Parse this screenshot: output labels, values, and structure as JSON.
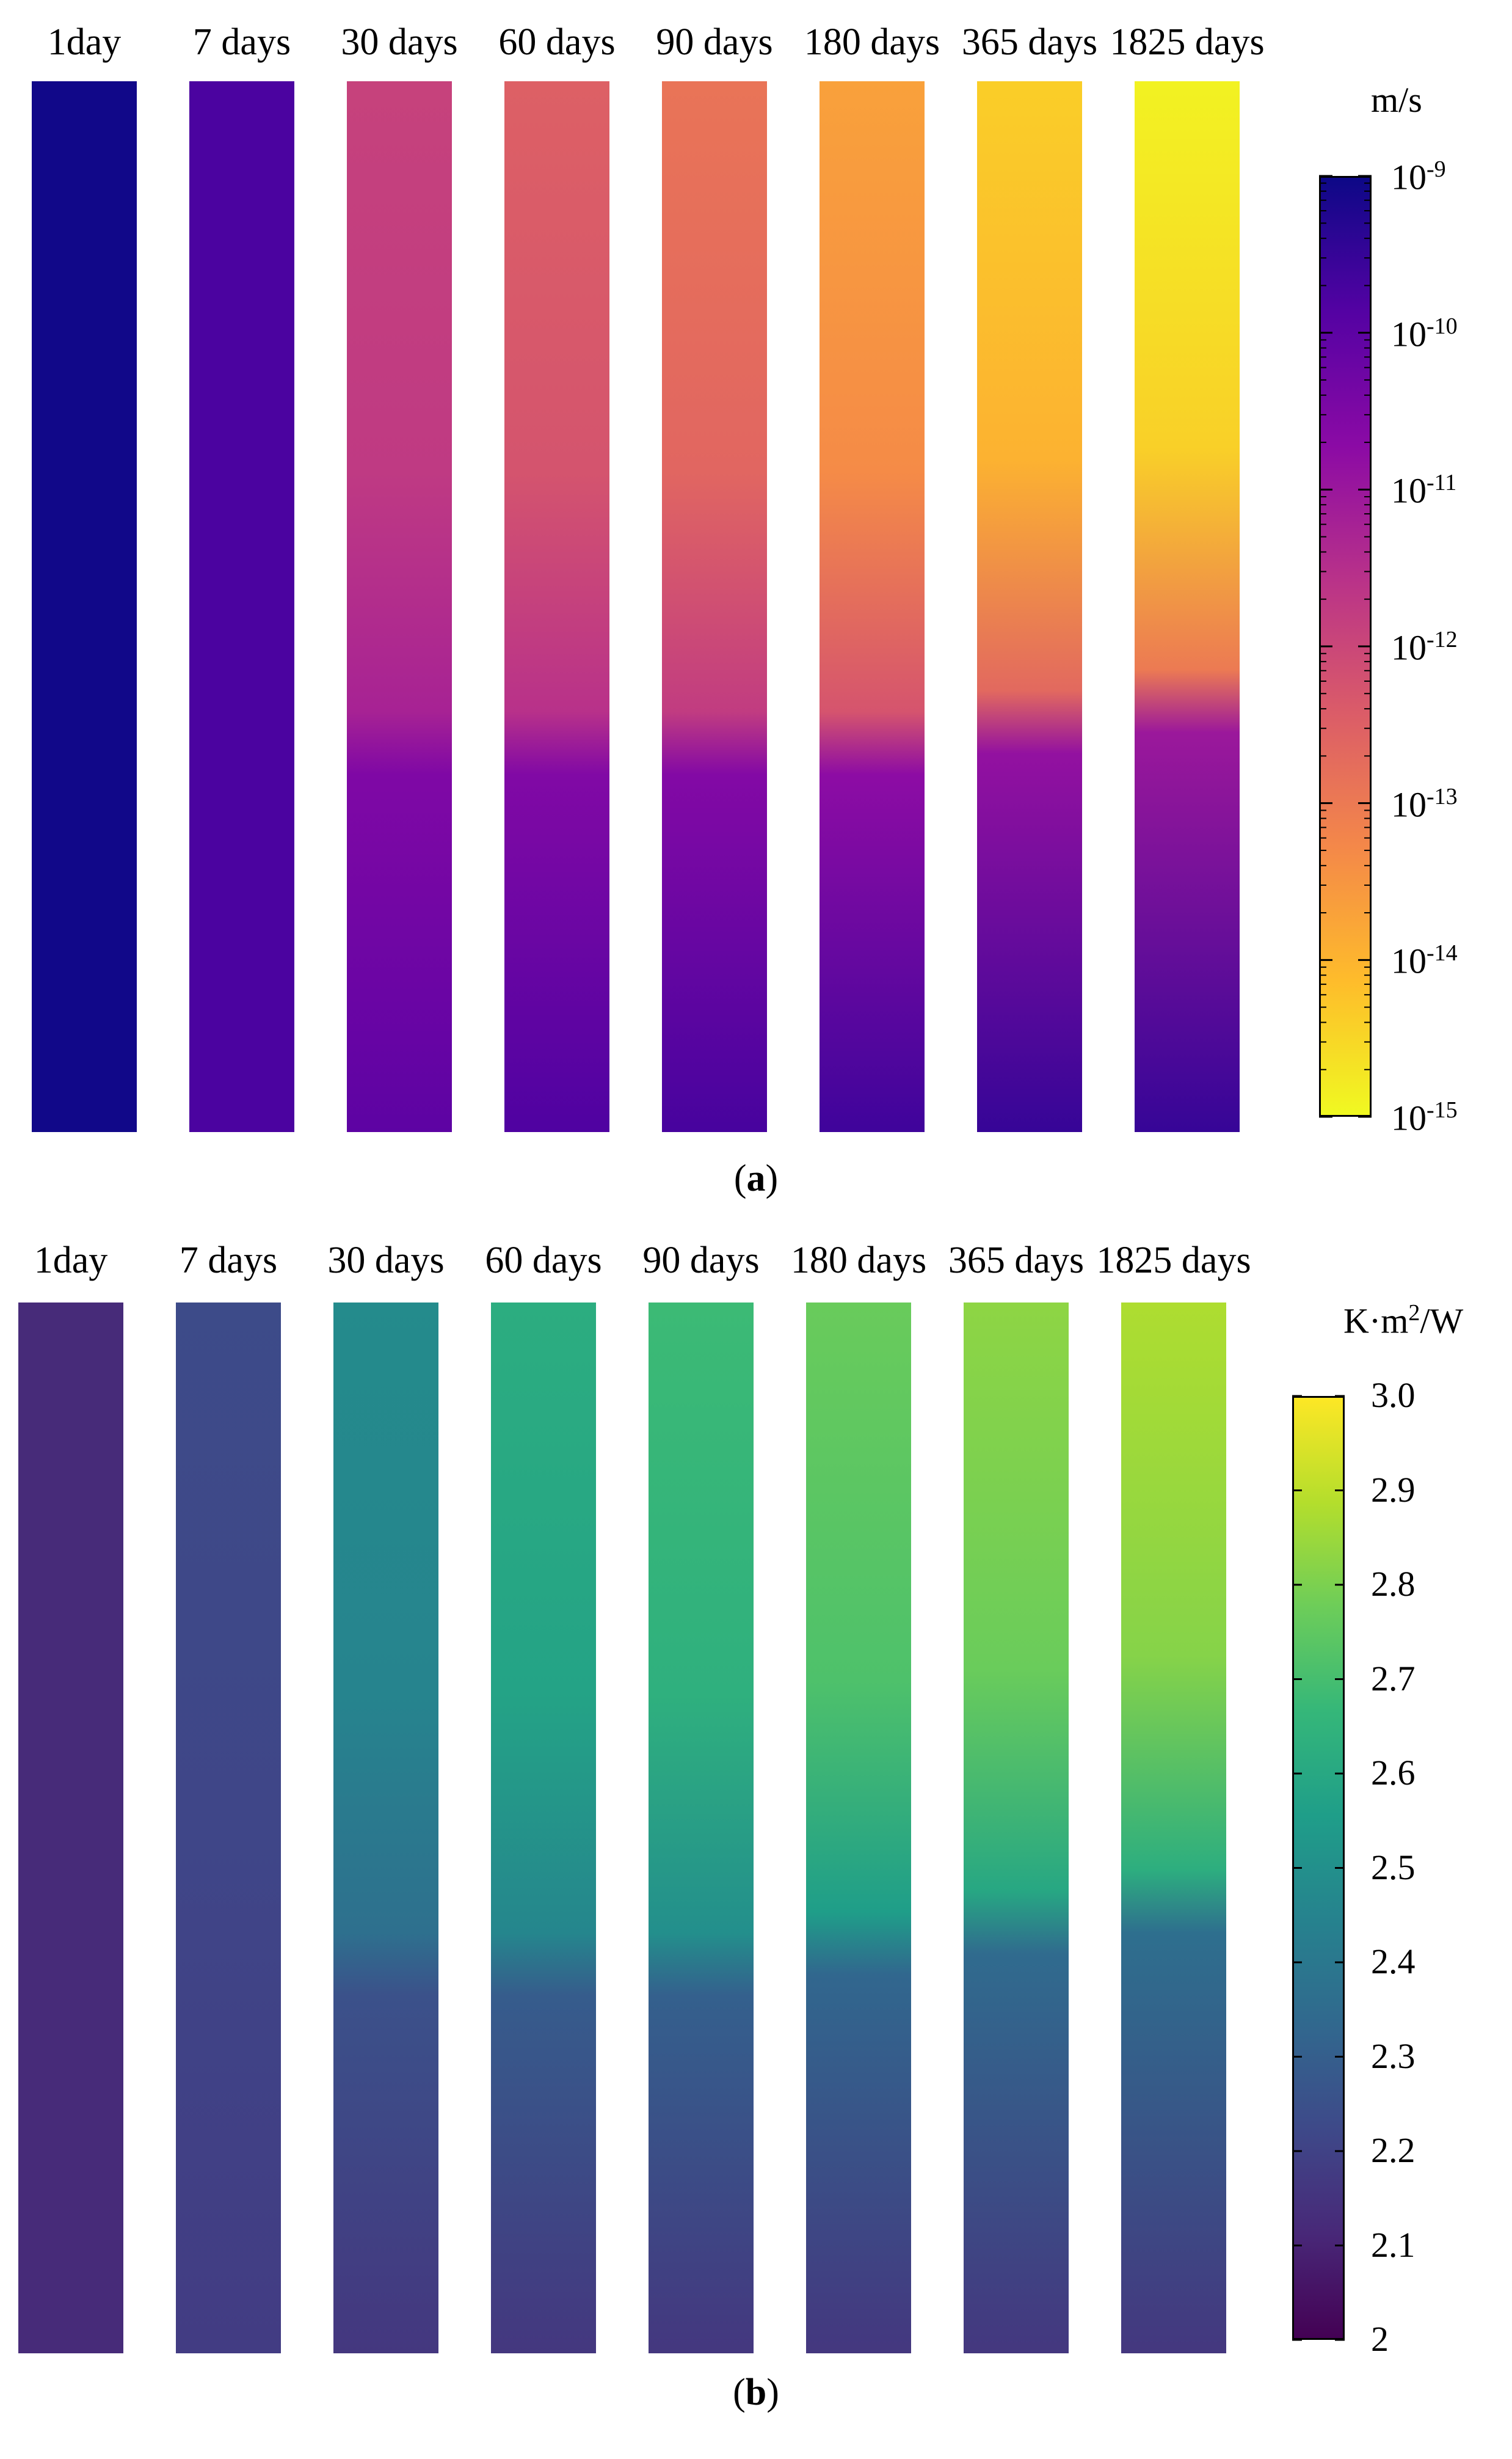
{
  "chart_data": [
    {
      "type": "heatmap",
      "panel": "a",
      "caption_open": "(",
      "caption_letter": "a",
      "caption_close": ")",
      "unit": "m/s",
      "categories": [
        "1day",
        "7 days",
        "30 days",
        "60 days",
        "90 days",
        "180 days",
        "365 days",
        "1825 days"
      ],
      "colorbar": {
        "scale": "log",
        "range": [
          -15,
          -9
        ],
        "reversed": true,
        "tick_exponents": [
          -9,
          -10,
          -11,
          -12,
          -13,
          -14,
          -15
        ],
        "tick_base": "10",
        "colormap": "plasma"
      },
      "profiles_log10": [
        {
          "name": "1day",
          "top": -9.05,
          "front_depth": 1.0,
          "bottom": -9.05
        },
        {
          "name": "7 days",
          "top": -9.75,
          "front_depth": 1.0,
          "bottom": -9.75
        },
        {
          "name": "30 days",
          "top": -11.9,
          "front_depth": 0.62,
          "bottom": -10.0
        },
        {
          "name": "60 days",
          "top": -12.5,
          "front_depth": 0.62,
          "bottom": -9.8
        },
        {
          "name": "90 days",
          "top": -12.9,
          "front_depth": 0.62,
          "bottom": -9.7
        },
        {
          "name": "180 days",
          "top": -13.7,
          "front_depth": 0.62,
          "bottom": -9.6
        },
        {
          "name": "365 days",
          "top": -14.4,
          "front_depth": 0.6,
          "bottom": -9.5
        },
        {
          "name": "1825 days",
          "top": -14.9,
          "front_depth": 0.58,
          "bottom": -9.5
        }
      ]
    },
    {
      "type": "heatmap",
      "panel": "b",
      "caption_open": "(",
      "caption_letter": "b",
      "caption_close": ")",
      "unit_base": "K·m",
      "unit_sup": "2",
      "unit_tail": "/W",
      "categories": [
        "1day",
        "7 days",
        "30 days",
        "60 days",
        "90 days",
        "180 days",
        "365 days",
        "1825 days"
      ],
      "colorbar": {
        "scale": "linear",
        "range": [
          2.0,
          3.0
        ],
        "tick_values": [
          3.0,
          2.9,
          2.8,
          2.7,
          2.6,
          2.5,
          2.4,
          2.3,
          2.2,
          2.1,
          2.0
        ],
        "tick_labels": [
          "3.0",
          "2.9",
          "2.8",
          "2.7",
          "2.6",
          "2.5",
          "2.4",
          "2.3",
          "2.2",
          "2.1",
          "2"
        ],
        "colormap": "viridis"
      },
      "profiles": [
        {
          "name": "1day",
          "top": 2.12,
          "front_depth": 1.0,
          "bottom": 2.12
        },
        {
          "name": "7 days",
          "top": 2.23,
          "front_depth": 1.0,
          "bottom": 2.18
        },
        {
          "name": "30 days",
          "top": 2.48,
          "front_depth": 0.62,
          "bottom": 2.16
        },
        {
          "name": "60 days",
          "top": 2.62,
          "front_depth": 0.62,
          "bottom": 2.16
        },
        {
          "name": "90 days",
          "top": 2.68,
          "front_depth": 0.62,
          "bottom": 2.16
        },
        {
          "name": "180 days",
          "top": 2.77,
          "front_depth": 0.6,
          "bottom": 2.16
        },
        {
          "name": "365 days",
          "top": 2.83,
          "front_depth": 0.58,
          "bottom": 2.16
        },
        {
          "name": "1825 days",
          "top": 2.88,
          "front_depth": 0.56,
          "bottom": 2.16
        }
      ]
    }
  ]
}
